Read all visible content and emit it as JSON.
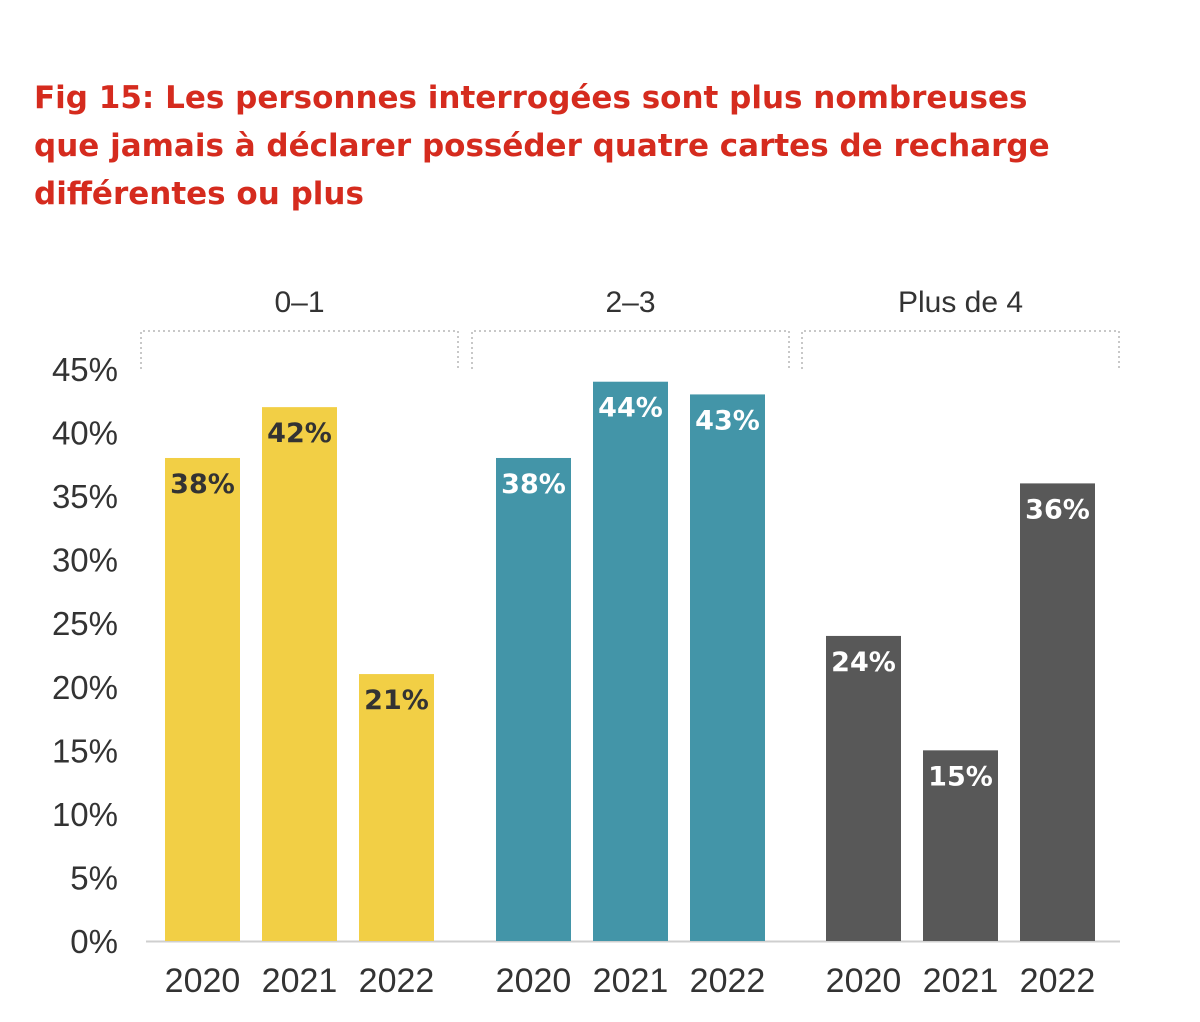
{
  "title_lines": [
    "Fig 15: Les personnes interrogées sont plus nombreuses",
    "que jamais à déclarer posséder quatre cartes de recharge",
    "différentes ou plus"
  ],
  "chart_data": {
    "type": "bar",
    "title": "Fig 15: Les personnes interrogées sont plus nombreuses que jamais à déclarer posséder quatre cartes de recharge différentes ou plus",
    "xlabel": "",
    "ylabel": "",
    "ylim": [
      0,
      45
    ],
    "yticks": [
      "0%",
      "5%",
      "10%",
      "15%",
      "20%",
      "25%",
      "30%",
      "35%",
      "40%",
      "45%"
    ],
    "grid": false,
    "groups": [
      {
        "name": "0-1",
        "label": "0–1",
        "color": "#f2cf45",
        "label_color": "#333333",
        "categories": [
          "2020",
          "2021",
          "2022"
        ],
        "values": [
          38,
          42,
          21
        ],
        "labels": [
          "38%",
          "42%",
          "21%"
        ]
      },
      {
        "name": "2-3",
        "label": "2–3",
        "color": "#4395a8",
        "label_color": "#ffffff",
        "categories": [
          "2020",
          "2021",
          "2022"
        ],
        "values": [
          38,
          44,
          43
        ],
        "labels": [
          "38%",
          "44%",
          "43%"
        ]
      },
      {
        "name": "Plus de 4",
        "label": "Plus de 4",
        "color": "#585858",
        "label_color": "#ffffff",
        "categories": [
          "2020",
          "2021",
          "2022"
        ],
        "values": [
          24,
          15,
          36
        ],
        "labels": [
          "24%",
          "15%",
          "36%"
        ]
      }
    ]
  }
}
